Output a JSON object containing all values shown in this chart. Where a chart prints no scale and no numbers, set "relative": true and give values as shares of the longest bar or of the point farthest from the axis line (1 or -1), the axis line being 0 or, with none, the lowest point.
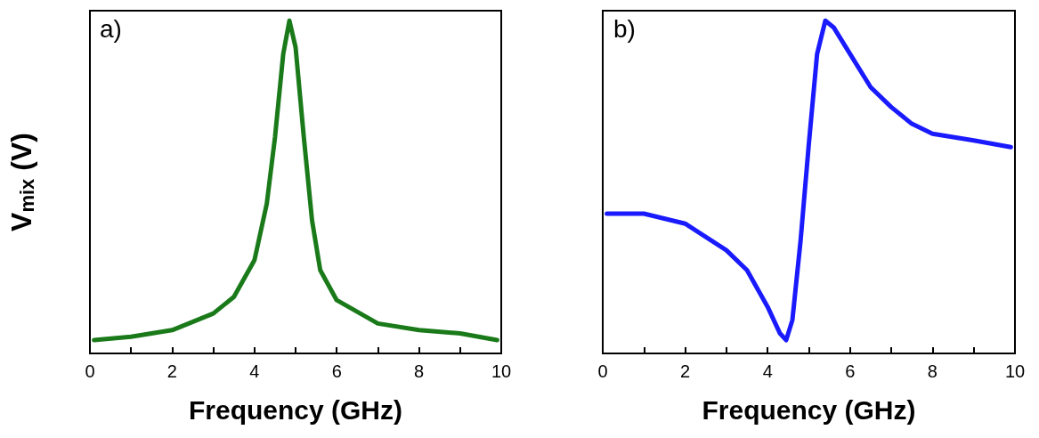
{
  "chart_data": [
    {
      "type": "line",
      "relative": true,
      "ylabel": "V$_{mix}$ (V)",
      "xlabel": "Frequency (GHz)",
      "annotations": [
        "a)"
      ],
      "xlim": [
        0,
        10
      ],
      "xticks": [
        0,
        {
          "value": 1,
          "label": null
        },
        2,
        {
          "value": 3,
          "label": null
        },
        4,
        {
          "value": 5,
          "label": null
        },
        6,
        {
          "value": 7,
          "label": null
        },
        8,
        {
          "value": 9,
          "label": null
        },
        10
      ],
      "tick_labels": "x",
      "grid": false,
      "marker": "none",
      "line_style": "solid",
      "series": [
        {
          "color": "#1a7a1a",
          "x": [
            0.1,
            1,
            2,
            3,
            3.5,
            4,
            4.3,
            4.5,
            4.7,
            4.85,
            5.0,
            5.2,
            5.4,
            5.6,
            6,
            7,
            8,
            9,
            9.9
          ],
          "values": [
            0.04,
            0.05,
            0.07,
            0.12,
            0.17,
            0.28,
            0.45,
            0.65,
            0.9,
            1.0,
            0.92,
            0.65,
            0.4,
            0.25,
            0.16,
            0.09,
            0.07,
            0.06,
            0.04
          ]
        }
      ]
    },
    {
      "type": "line",
      "relative": true,
      "xlabel": "Frequency (GHz)",
      "annotations": [
        "b)"
      ],
      "xlim": [
        0,
        10
      ],
      "xticks": [
        0,
        {
          "value": 1,
          "label": null
        },
        2,
        {
          "value": 3,
          "label": null
        },
        4,
        {
          "value": 5,
          "label": null
        },
        6,
        {
          "value": 7,
          "label": null
        },
        8,
        {
          "value": 9,
          "label": null
        },
        10
      ],
      "tick_labels": "x",
      "grid": false,
      "marker": "none",
      "line_style": "solid",
      "series": [
        {
          "color": "#1a1aff",
          "x": [
            0.1,
            1,
            2,
            3,
            3.5,
            4,
            4.3,
            4.45,
            4.6,
            4.8,
            5.0,
            5.2,
            5.4,
            5.6,
            6,
            6.5,
            7,
            7.5,
            8,
            9,
            9.9
          ],
          "values": [
            0.42,
            0.42,
            0.39,
            0.31,
            0.25,
            0.14,
            0.06,
            0.04,
            0.1,
            0.34,
            0.63,
            0.9,
            1.0,
            0.98,
            0.9,
            0.8,
            0.74,
            0.69,
            0.66,
            0.64,
            0.62
          ]
        }
      ]
    }
  ]
}
